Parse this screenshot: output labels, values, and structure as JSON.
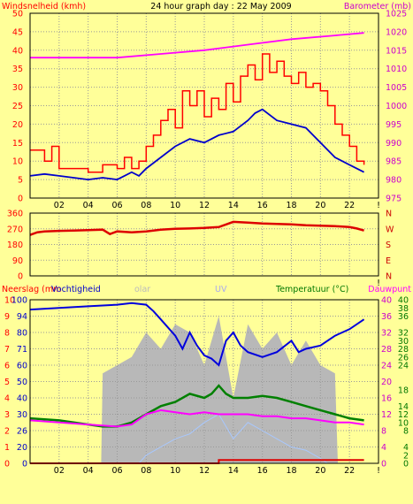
{
  "header": {
    "left_label": "Windsnelheid (kmh)",
    "title": "24 hour graph day : 22 May 2009",
    "right_label": "Barometer (mb)"
  },
  "colors": {
    "background": "#ffff99",
    "wind_gust": "#ff0000",
    "wind_avg": "#0000cc",
    "barometer": "#ff00ff",
    "direction": "#dd0000",
    "humidity": "#0000dd",
    "solar": "#b8b8b8",
    "uv": "#a8c8ff",
    "temperature": "#008000",
    "dewpoint": "#ff00ff",
    "rain": "#dd0000",
    "label_left": "#ff0000",
    "label_right_axis": "#cc00cc",
    "label_green": "#007700"
  },
  "chart_data": [
    {
      "type": "line",
      "panel": "wind-pressure",
      "x_unit": "hour",
      "x_ticks": [
        "02",
        "04",
        "06",
        "08",
        "10",
        "12",
        "14",
        "16",
        "18",
        "20",
        "22",
        "!"
      ],
      "y_left": {
        "label": "Windsnelheid (kmh)",
        "range": [
          0,
          50
        ],
        "ticks": [
          "0",
          "5",
          "10",
          "15",
          "20",
          "25",
          "30",
          "35",
          "40",
          "45",
          "50"
        ]
      },
      "y_right": {
        "label": "Barometer (mb)",
        "range": [
          975,
          1025
        ],
        "ticks": [
          "975",
          "980",
          "985",
          "990",
          "995",
          "1000",
          "1005",
          "1010",
          "1015",
          "1020",
          "1025"
        ]
      },
      "series": [
        {
          "key": "gust",
          "axis": "left",
          "step": true,
          "x": [
            0,
            1,
            1.5,
            2,
            3,
            4,
            5,
            6,
            6.5,
            7,
            7.5,
            8,
            8.5,
            9,
            9.5,
            10,
            10.5,
            11,
            11.5,
            12,
            12.5,
            13,
            13.5,
            14,
            14.5,
            15,
            15.5,
            16,
            16.5,
            17,
            17.5,
            18,
            18.5,
            19,
            19.5,
            20,
            20.5,
            21,
            21.5,
            22,
            22.5,
            23
          ],
          "y": [
            13,
            10,
            14,
            8,
            8,
            7,
            9,
            8,
            11,
            8,
            10,
            14,
            17,
            21,
            24,
            19,
            29,
            25,
            29,
            22,
            27,
            24,
            31,
            26,
            33,
            36,
            32,
            39,
            34,
            37,
            33,
            31,
            34,
            30,
            31,
            29,
            25,
            20,
            17,
            14,
            10,
            9
          ]
        },
        {
          "key": "average",
          "axis": "left",
          "step": false,
          "x": [
            0,
            1,
            2,
            3,
            4,
            5,
            6,
            6.5,
            7,
            7.5,
            8,
            9,
            10,
            11,
            12,
            13,
            14,
            15,
            15.5,
            16,
            17,
            18,
            19,
            20,
            21,
            22,
            22.5,
            23
          ],
          "y": [
            6,
            6.5,
            6,
            5.5,
            5,
            5.5,
            5,
            6,
            7,
            6,
            8,
            11,
            14,
            16,
            15,
            17,
            18,
            21,
            23,
            24,
            21,
            20,
            19,
            15,
            11,
            9,
            8,
            7
          ]
        },
        {
          "key": "barometer",
          "axis": "right",
          "step": false,
          "x": [
            0,
            3,
            6,
            9,
            12,
            15,
            18,
            21,
            23
          ],
          "y": [
            1013,
            1013,
            1013,
            1014,
            1015,
            1016.5,
            1018,
            1019,
            1019.7
          ]
        }
      ]
    },
    {
      "type": "line",
      "panel": "wind-direction",
      "y_left": {
        "range": [
          0,
          360
        ],
        "ticks": [
          "0",
          "90",
          "180",
          "270",
          "360"
        ]
      },
      "y_right": {
        "ticks": [
          "N",
          "W",
          "S",
          "E",
          "N"
        ]
      },
      "series": [
        {
          "key": "direction",
          "x": [
            0,
            0.5,
            1,
            2,
            3,
            4,
            5,
            5.5,
            6,
            7,
            8,
            9,
            10,
            11,
            12,
            13,
            14,
            15,
            16,
            17,
            18,
            19,
            20,
            21,
            22,
            22.5,
            23
          ],
          "y": [
            235,
            250,
            255,
            258,
            260,
            262,
            265,
            240,
            255,
            250,
            255,
            265,
            270,
            272,
            275,
            280,
            310,
            305,
            300,
            298,
            295,
            290,
            288,
            285,
            280,
            272,
            260
          ]
        }
      ]
    },
    {
      "type": "line",
      "panel": "humidity-temperature",
      "legend": {
        "rain": "Neerslag (mm",
        "humidity": "Vochtigheid",
        "solar": "olar",
        "uv": "UV",
        "temperature": "Temperatuur (°C)",
        "dewpoint": "Dauwpunt"
      },
      "y_left_outer": {
        "label": "Neerslag (mm",
        "ticks": [
          "0",
          "1",
          "2",
          "3",
          "4",
          "5",
          "6",
          "7",
          "8",
          "9",
          "10"
        ]
      },
      "y_left_inner": {
        "label": "Vochtigheid",
        "range": [
          0,
          100
        ],
        "ticks": [
          "0",
          "20",
          "26",
          "30",
          "40",
          "50",
          "60",
          "71",
          "80",
          "94",
          "100"
        ]
      },
      "y_right_outer": {
        "label": "Temperatuur (°C)",
        "range": [
          0,
          40
        ],
        "ticks": [
          "0",
          "2",
          "4",
          "8",
          "10",
          "12",
          "14",
          "18",
          "24",
          "26",
          "28",
          "30",
          "32",
          "36",
          "38",
          "40"
        ]
      },
      "y_right_inner": {
        "ticks": [
          "0",
          "4",
          "8",
          "12",
          "16",
          "20",
          "24",
          "28",
          "32",
          "36",
          "40"
        ]
      },
      "series": [
        {
          "key": "solar",
          "x": [
            0,
            4.9,
            5,
            6,
            7,
            8,
            9,
            10,
            11,
            12,
            13,
            14,
            15,
            16,
            17,
            18,
            19,
            20,
            21,
            21.2,
            23
          ],
          "y": [
            0,
            0,
            55,
            60,
            65,
            80,
            70,
            85,
            80,
            60,
            90,
            40,
            85,
            70,
            80,
            60,
            75,
            60,
            55,
            0,
            0
          ]
        },
        {
          "key": "uv",
          "x": [
            0,
            7.5,
            8,
            9,
            10,
            11,
            12,
            13,
            14,
            15,
            16,
            17,
            18,
            19,
            20,
            20.5,
            23
          ],
          "y": [
            0,
            0,
            5,
            10,
            15,
            18,
            25,
            30,
            15,
            25,
            20,
            15,
            10,
            8,
            3,
            0,
            0
          ]
        },
        {
          "key": "humidity",
          "x": [
            0,
            2,
            4,
            6,
            7,
            8,
            8.5,
            9,
            10,
            10.5,
            11,
            11.5,
            12,
            12.5,
            13,
            13.5,
            14,
            14.5,
            15,
            16,
            17,
            18,
            18.5,
            19,
            20,
            21,
            22,
            23
          ],
          "y": [
            94,
            95,
            96,
            97,
            98,
            97,
            93,
            88,
            78,
            70,
            80,
            72,
            66,
            64,
            60,
            75,
            80,
            72,
            68,
            65,
            68,
            75,
            68,
            70,
            72,
            78,
            82,
            88
          ]
        },
        {
          "key": "temperature",
          "x": [
            0,
            2,
            4,
            5,
            6,
            7,
            8,
            9,
            10,
            11,
            12,
            12.5,
            13,
            13.5,
            14,
            15,
            16,
            17,
            18,
            19,
            20,
            21,
            22,
            23
          ],
          "y": [
            11,
            10.5,
            9.5,
            9,
            9,
            10,
            12,
            14,
            15,
            17,
            16,
            17,
            19,
            17,
            16,
            16,
            16.5,
            16,
            15,
            14,
            13,
            12,
            11,
            10.5
          ]
        },
        {
          "key": "dewpoint",
          "x": [
            0,
            2,
            4,
            6,
            7,
            8,
            9,
            10,
            11,
            12,
            13,
            14,
            15,
            16,
            17,
            18,
            19,
            20,
            21,
            22,
            23
          ],
          "y": [
            10.5,
            10,
            9.5,
            9,
            9.5,
            12,
            13,
            12.5,
            12,
            12.5,
            12,
            12,
            12,
            11.5,
            11.5,
            11,
            11,
            10.5,
            10,
            10,
            9.5
          ]
        },
        {
          "key": "rain",
          "x": [
            0,
            12.8,
            13,
            23
          ],
          "y": [
            0,
            0,
            0.2,
            0.2
          ]
        }
      ]
    }
  ]
}
